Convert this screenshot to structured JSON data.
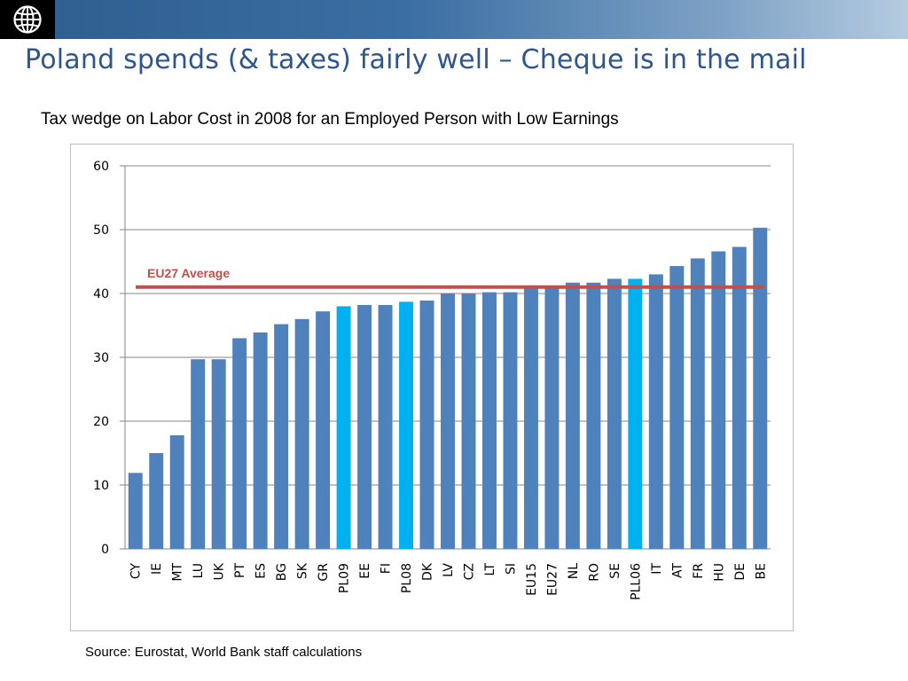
{
  "slide": {
    "title": "Poland spends (& taxes) fairly well – Cheque is in the mail",
    "subtitle": "Tax wedge on Labor Cost in 2008 for an Employed Person with Low Earnings",
    "source": "Source: Eurostat, World Bank staff calculations",
    "logo_icon": "globe-icon"
  },
  "chart_data": {
    "type": "bar",
    "categories": [
      "CY",
      "IE",
      "MT",
      "LU",
      "UK",
      "PT",
      "ES",
      "BG",
      "SK",
      "GR",
      "PL09",
      "EE",
      "FI",
      "PL08",
      "DK",
      "LV",
      "CZ",
      "LT",
      "SI",
      "EU15",
      "EU27",
      "NL",
      "RO",
      "SE",
      "PLL06",
      "IT",
      "AT",
      "FR",
      "HU",
      "DE",
      "BE"
    ],
    "values": [
      11.9,
      15.0,
      17.8,
      29.7,
      29.7,
      33.0,
      33.9,
      35.2,
      36.0,
      37.2,
      38.0,
      38.2,
      38.2,
      38.7,
      38.9,
      40.0,
      40.0,
      40.2,
      40.2,
      41.0,
      41.0,
      41.7,
      41.7,
      42.3,
      42.3,
      43.0,
      44.3,
      45.5,
      46.6,
      47.3,
      50.3
    ],
    "highlight": [
      "PL09",
      "PL08",
      "PLL06"
    ],
    "ylim": [
      0,
      60
    ],
    "yticks": [
      0,
      10,
      20,
      30,
      40,
      50,
      60
    ],
    "grid": true,
    "reference_line": {
      "label": "EU27 Average",
      "value": 41.0
    },
    "colors": {
      "bar": "#4f81bd",
      "highlight": "#00b0f0",
      "reference": "#c0504d",
      "grid": "#868686"
    }
  }
}
